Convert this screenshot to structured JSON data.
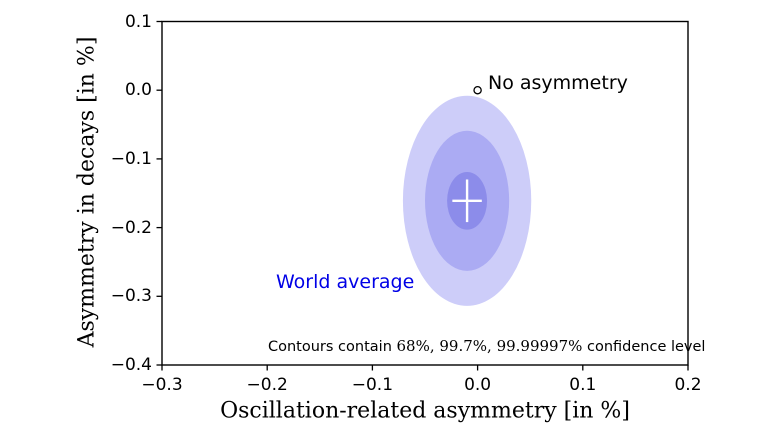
{
  "figure": {
    "background": "#ffffff",
    "axis_color": "#000000",
    "tick_color": "#000000"
  },
  "chart_data": {
    "type": "scatter",
    "title": "",
    "xlabel": "Oscillation-related asymmetry [in %]",
    "ylabel": "Asymmetry in decays [in %]",
    "xlim": [
      -0.3,
      0.2
    ],
    "ylim": [
      -0.4,
      0.1
    ],
    "grid": false,
    "legend": "none",
    "xticks": [
      {
        "v": -0.3,
        "label": "−0.3"
      },
      {
        "v": -0.2,
        "label": "−0.2"
      },
      {
        "v": -0.1,
        "label": "−0.1"
      },
      {
        "v": 0.0,
        "label": "0.0"
      },
      {
        "v": 0.1,
        "label": "0.1"
      },
      {
        "v": 0.2,
        "label": "0.2"
      }
    ],
    "yticks": [
      {
        "v": 0.1,
        "label": "0.1"
      },
      {
        "v": 0.0,
        "label": "0.0"
      },
      {
        "v": -0.1,
        "label": "−0.1"
      },
      {
        "v": -0.2,
        "label": "−0.2"
      },
      {
        "v": -0.3,
        "label": "−0.3"
      },
      {
        "v": -0.4,
        "label": "−0.4"
      }
    ],
    "world_average": {
      "label": "World average",
      "label_color": "#0000e6",
      "x": -0.01,
      "y": -0.161,
      "marker": "white-cross",
      "cross_half_width": 0.014,
      "cross_half_height": 0.031,
      "cross_color": "#ffffff"
    },
    "confidence_ellipses": [
      {
        "contains": "99.99997%",
        "rx": 0.061,
        "ry": 0.153,
        "fill": "#cdcdf9"
      },
      {
        "contains": "99.7%",
        "rx": 0.04,
        "ry": 0.102,
        "fill": "#ababf3"
      },
      {
        "contains": "68%",
        "rx": 0.019,
        "ry": 0.042,
        "fill": "#8c8cea"
      }
    ],
    "no_asymmetry": {
      "label": "No asymmetry",
      "x": 0.0,
      "y": 0.0,
      "marker": "open-circle",
      "marker_fill": "#ffffff",
      "marker_edge": "#000000"
    },
    "annotation": {
      "prefix": "Contours contain ",
      "levels": "68%, 99.7%, 99.99997%",
      "suffix": " confidence level"
    }
  }
}
